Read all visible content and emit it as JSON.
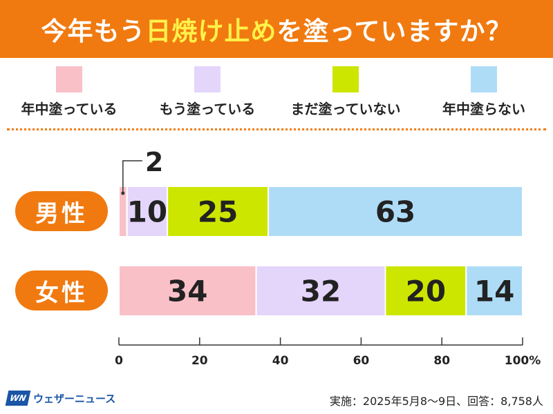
{
  "header": {
    "title_pre": "今年もう",
    "title_highlight": "日焼け止め",
    "title_post": "を塗っていますか？"
  },
  "colors": {
    "header_bg": "#f07a10",
    "title_highlight": "#fff24a",
    "series": [
      "#f9c0c8",
      "#e4d5fb",
      "#cde600",
      "#aedcf7"
    ]
  },
  "chart_data": {
    "type": "bar",
    "orientation": "horizontal",
    "stacked": true,
    "unit": "%",
    "categories": [
      "男性",
      "女性"
    ],
    "series": [
      {
        "name": "年中塗っている",
        "values": [
          2,
          34
        ]
      },
      {
        "name": "もう塗っている",
        "values": [
          10,
          32
        ]
      },
      {
        "name": "まだ塗っていない",
        "values": [
          25,
          20
        ]
      },
      {
        "name": "年中塗らない",
        "values": [
          63,
          14
        ]
      }
    ],
    "xlim": [
      0,
      100
    ],
    "xticks": [
      0,
      20,
      40,
      60,
      80,
      100
    ],
    "xtick_labels": [
      "0",
      "20",
      "40",
      "60",
      "80",
      "100%"
    ],
    "callout": {
      "category": "男性",
      "series": "年中塗っている",
      "label": "2"
    },
    "legend_position": "top"
  },
  "footer": {
    "logo_mark": "WN",
    "logo_text": "ウェザーニュース",
    "note": "実施：2025年5月8〜9日、回答：8,758人"
  }
}
